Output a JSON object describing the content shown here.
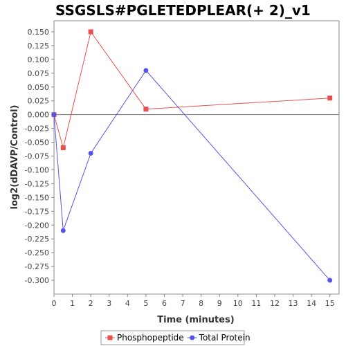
{
  "chart_data": {
    "type": "line",
    "title": "SSGSLS#PGLETEDPLEAR(+ 2)_v1",
    "xlabel": "Time (minutes)",
    "ylabel": "log2(dDAVP/Control)",
    "xlim": [
      0,
      15.5
    ],
    "ylim": [
      -0.325,
      0.17
    ],
    "x_ticks": [
      0,
      1,
      2,
      3,
      4,
      5,
      6,
      7,
      8,
      9,
      10,
      11,
      12,
      13,
      14,
      15
    ],
    "y_ticks": [
      "0.150",
      "0.125",
      "0.100",
      "0.075",
      "0.050",
      "0.025",
      "0.000",
      "-0.025",
      "-0.050",
      "-0.075",
      "-0.100",
      "-0.125",
      "-0.150",
      "-0.175",
      "-0.200",
      "-0.225",
      "-0.250",
      "-0.275",
      "-0.300"
    ],
    "grid": false,
    "zero_line": true,
    "legend_position": "bottom",
    "series": [
      {
        "name": "Phosphopeptide",
        "color": "#e8504f",
        "marker": "square",
        "x": [
          0,
          0.5,
          2,
          5,
          15
        ],
        "y": [
          0.0,
          -0.06,
          0.15,
          0.01,
          0.03
        ]
      },
      {
        "name": "Total Protein",
        "color": "#5555e8",
        "marker": "circle",
        "x": [
          0,
          0.5,
          2,
          5,
          15
        ],
        "y": [
          0.0,
          -0.21,
          -0.07,
          0.08,
          -0.3
        ]
      }
    ]
  }
}
